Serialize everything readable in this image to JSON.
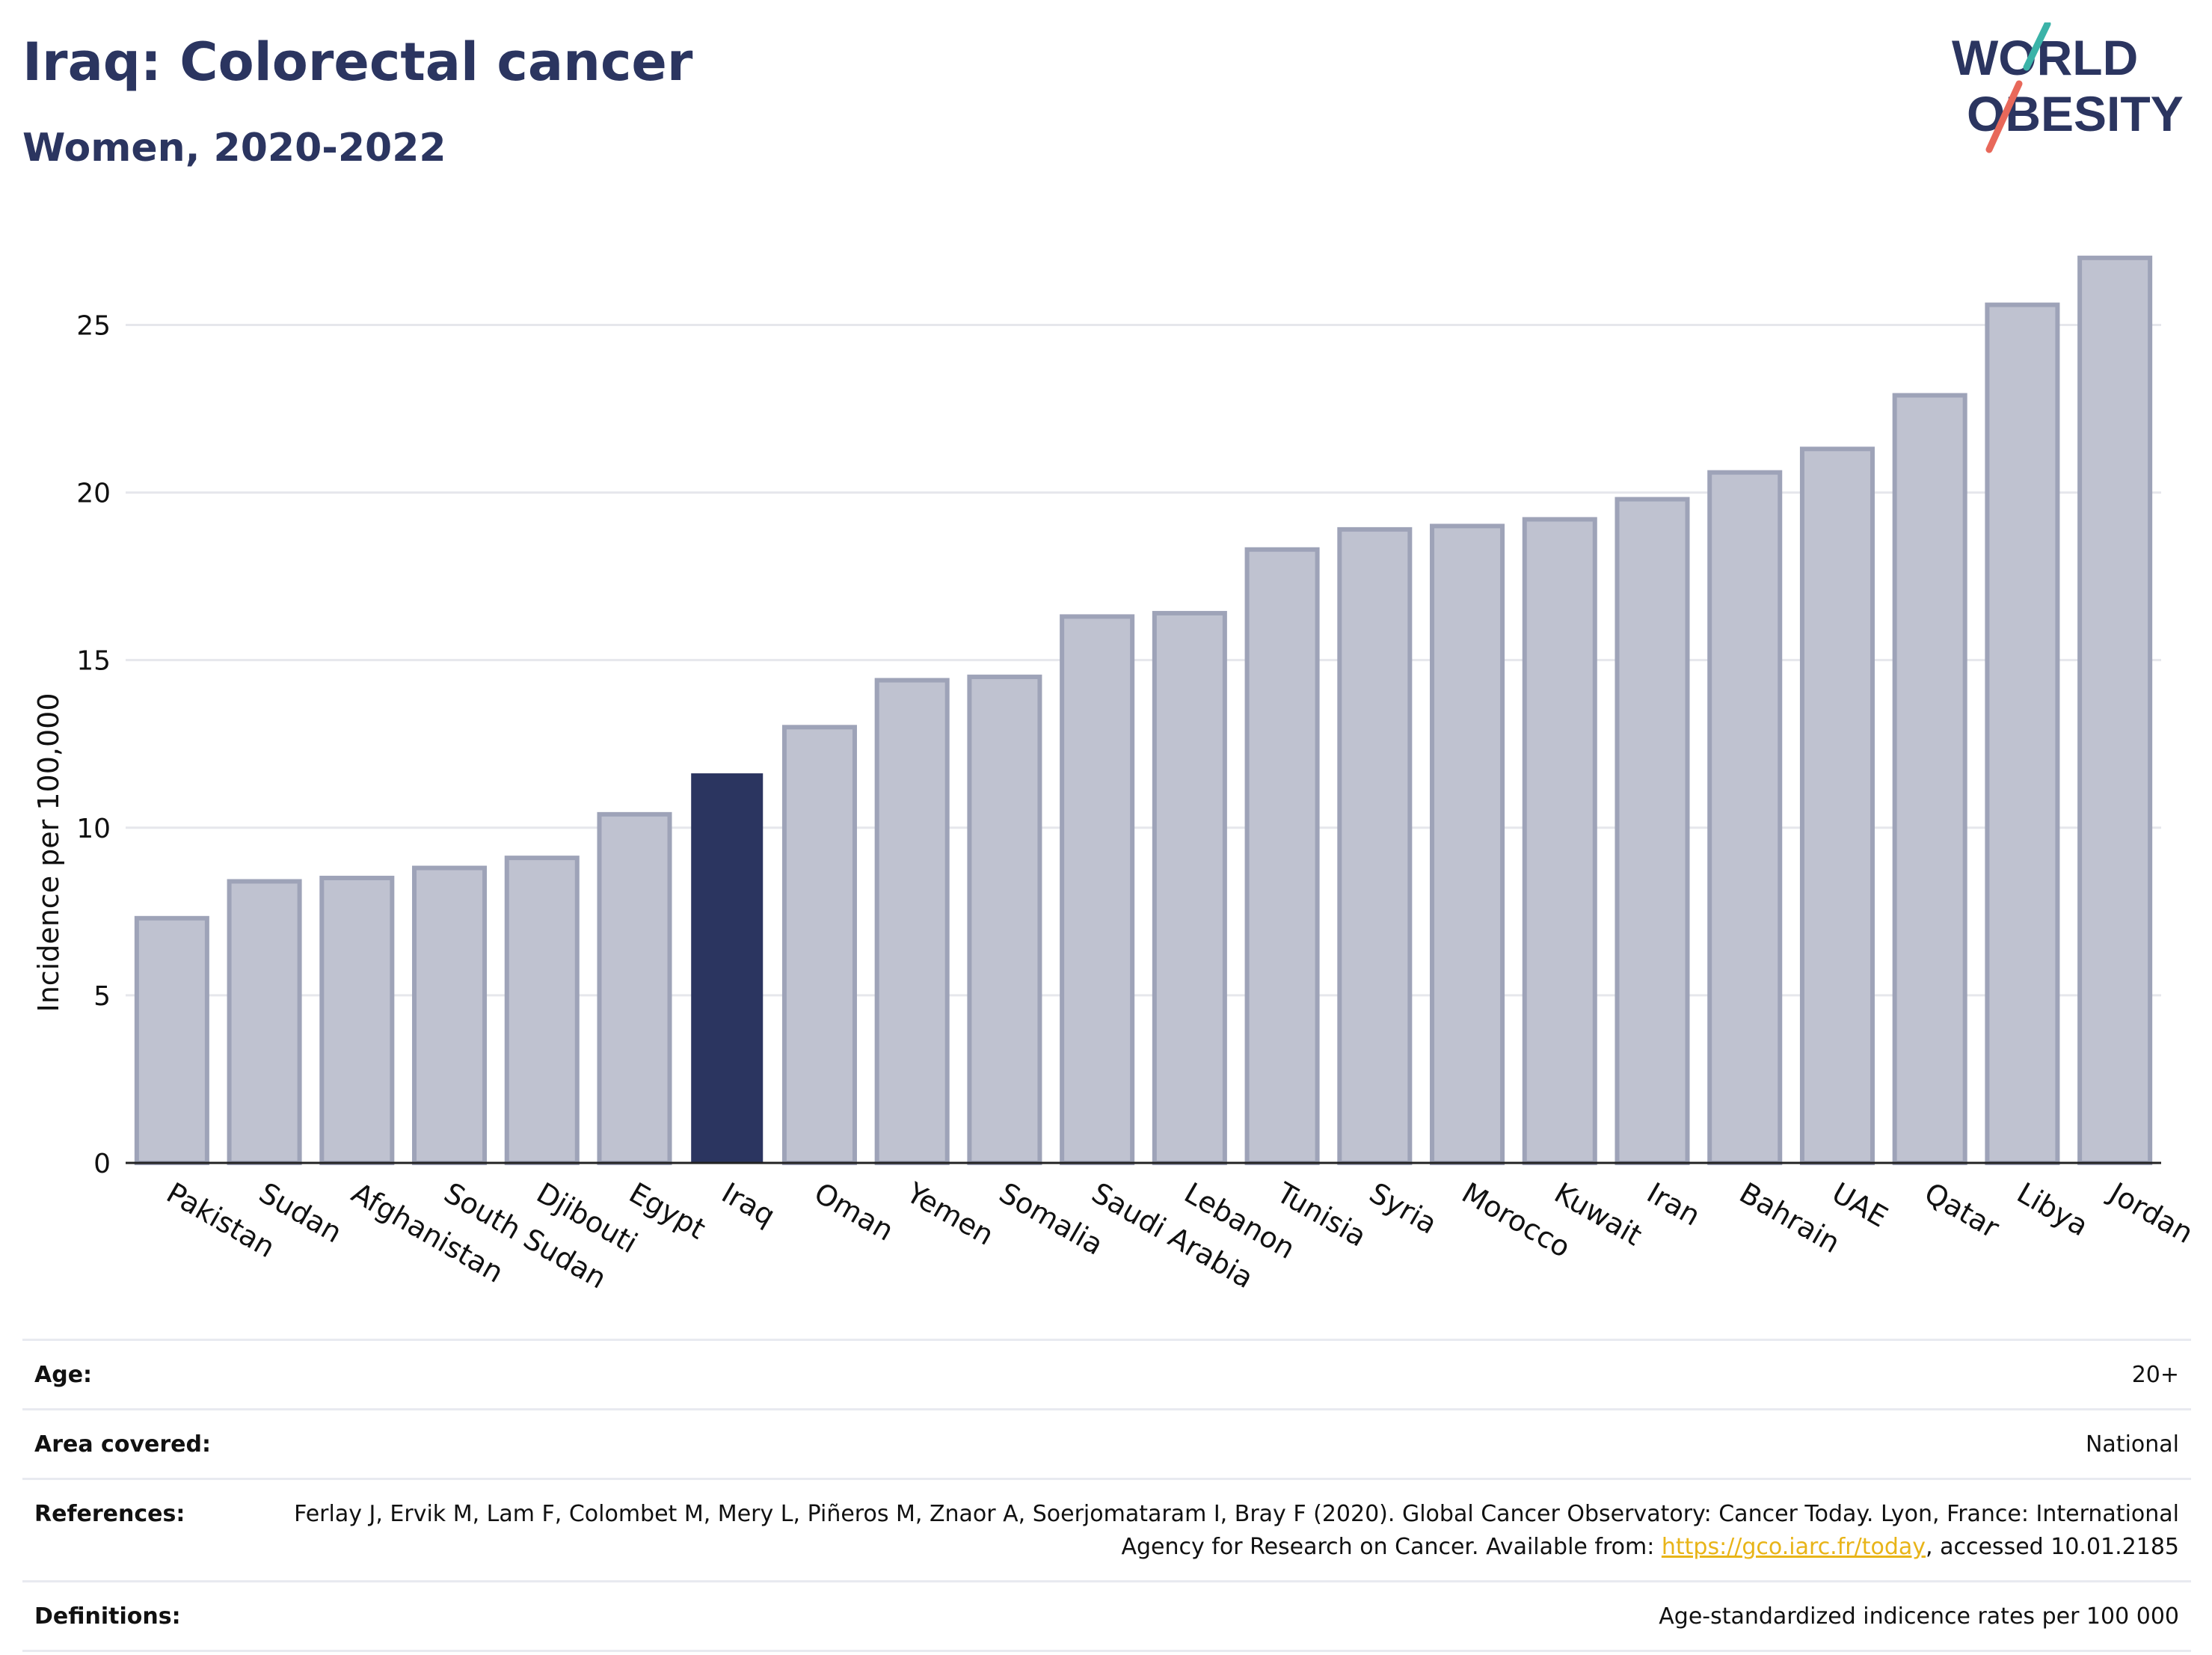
{
  "header": {
    "title": "Iraq: Colorectal cancer",
    "subtitle": "Women, 2020-2022"
  },
  "logo": {
    "line1": "WORLD",
    "line2": "OBESITY",
    "brand_color": "#2b3560",
    "slash_top_color": "#3bb3a8",
    "slash_bottom_color": "#e8685a"
  },
  "colors": {
    "highlight_bar": "#2b3560",
    "other_bar_fill": "#bfc2d0",
    "other_bar_stroke": "#9ea3b8"
  },
  "chart_data": {
    "type": "bar",
    "ylabel": "Incidence per 100,000",
    "ylim": [
      0,
      28
    ],
    "yticks": [
      0,
      5,
      10,
      15,
      20,
      25
    ],
    "grid": true,
    "highlight": "Iraq",
    "categories": [
      "Pakistan",
      "Sudan",
      "Afghanistan",
      "South Sudan",
      "Djibouti",
      "Egypt",
      "Iraq",
      "Oman",
      "Yemen",
      "Somalia",
      "Saudi Arabia",
      "Lebanon",
      "Tunisia",
      "Syria",
      "Morocco",
      "Kuwait",
      "Iran",
      "Bahrain",
      "UAE",
      "Qatar",
      "Libya",
      "Jordan"
    ],
    "values": [
      7.3,
      8.4,
      8.5,
      8.8,
      9.1,
      10.4,
      11.6,
      13.0,
      14.4,
      14.5,
      16.3,
      16.4,
      18.3,
      18.9,
      19.0,
      19.2,
      19.8,
      20.6,
      21.3,
      22.9,
      25.6,
      27.0
    ]
  },
  "info": {
    "rows": [
      {
        "label": "Age:",
        "value": "20+"
      },
      {
        "label": "Area covered:",
        "value": "National"
      },
      {
        "label": "References:",
        "value_before": "Ferlay J, Ervik M, Lam F, Colombet M, Mery L, Piñeros M, Znaor A, Soerjomataram I, Bray F (2020). Global Cancer Observatory: Cancer Today. Lyon, France: International Agency for Research on Cancer. Available from: ",
        "link": "https://gco.iarc.fr/today",
        "value_after": ", accessed 10.01.2185"
      },
      {
        "label": "Definitions:",
        "value": "Age-standardized indicence rates per 100 000"
      }
    ]
  }
}
